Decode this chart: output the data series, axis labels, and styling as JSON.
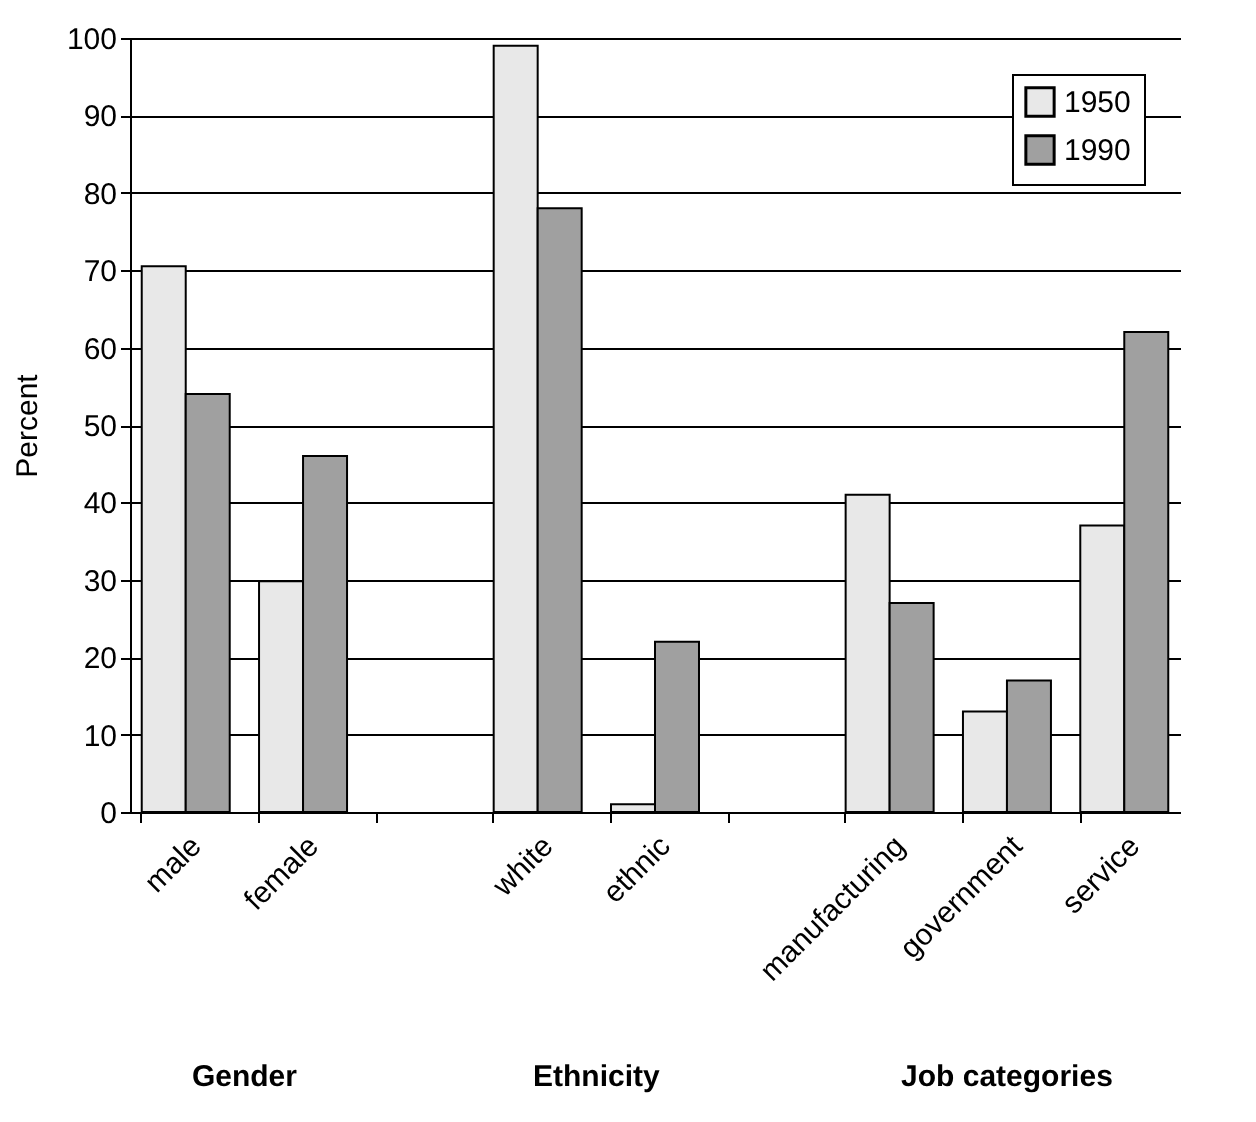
{
  "chart_data": {
    "type": "bar",
    "ylabel": "Percent",
    "categories": [
      "male",
      "female",
      null,
      "white",
      "ethnic",
      null,
      "manufacturing",
      "government",
      "service"
    ],
    "series": [
      {
        "name": "1950",
        "color": "#e8e8e8",
        "values": [
          70.5,
          29.8,
          null,
          99,
          1,
          null,
          41,
          13,
          37
        ]
      },
      {
        "name": "1990",
        "color": "#a0a0a0",
        "values": [
          54,
          46,
          null,
          78,
          22,
          null,
          27,
          17,
          62
        ]
      }
    ],
    "ylim": [
      0,
      100
    ],
    "yticks": [
      0,
      10,
      20,
      30,
      40,
      50,
      60,
      70,
      80,
      90,
      100
    ],
    "grid": "y",
    "legend": "top right",
    "annotations": [
      "Gender",
      "Ethnicity",
      "Job categories"
    ]
  }
}
